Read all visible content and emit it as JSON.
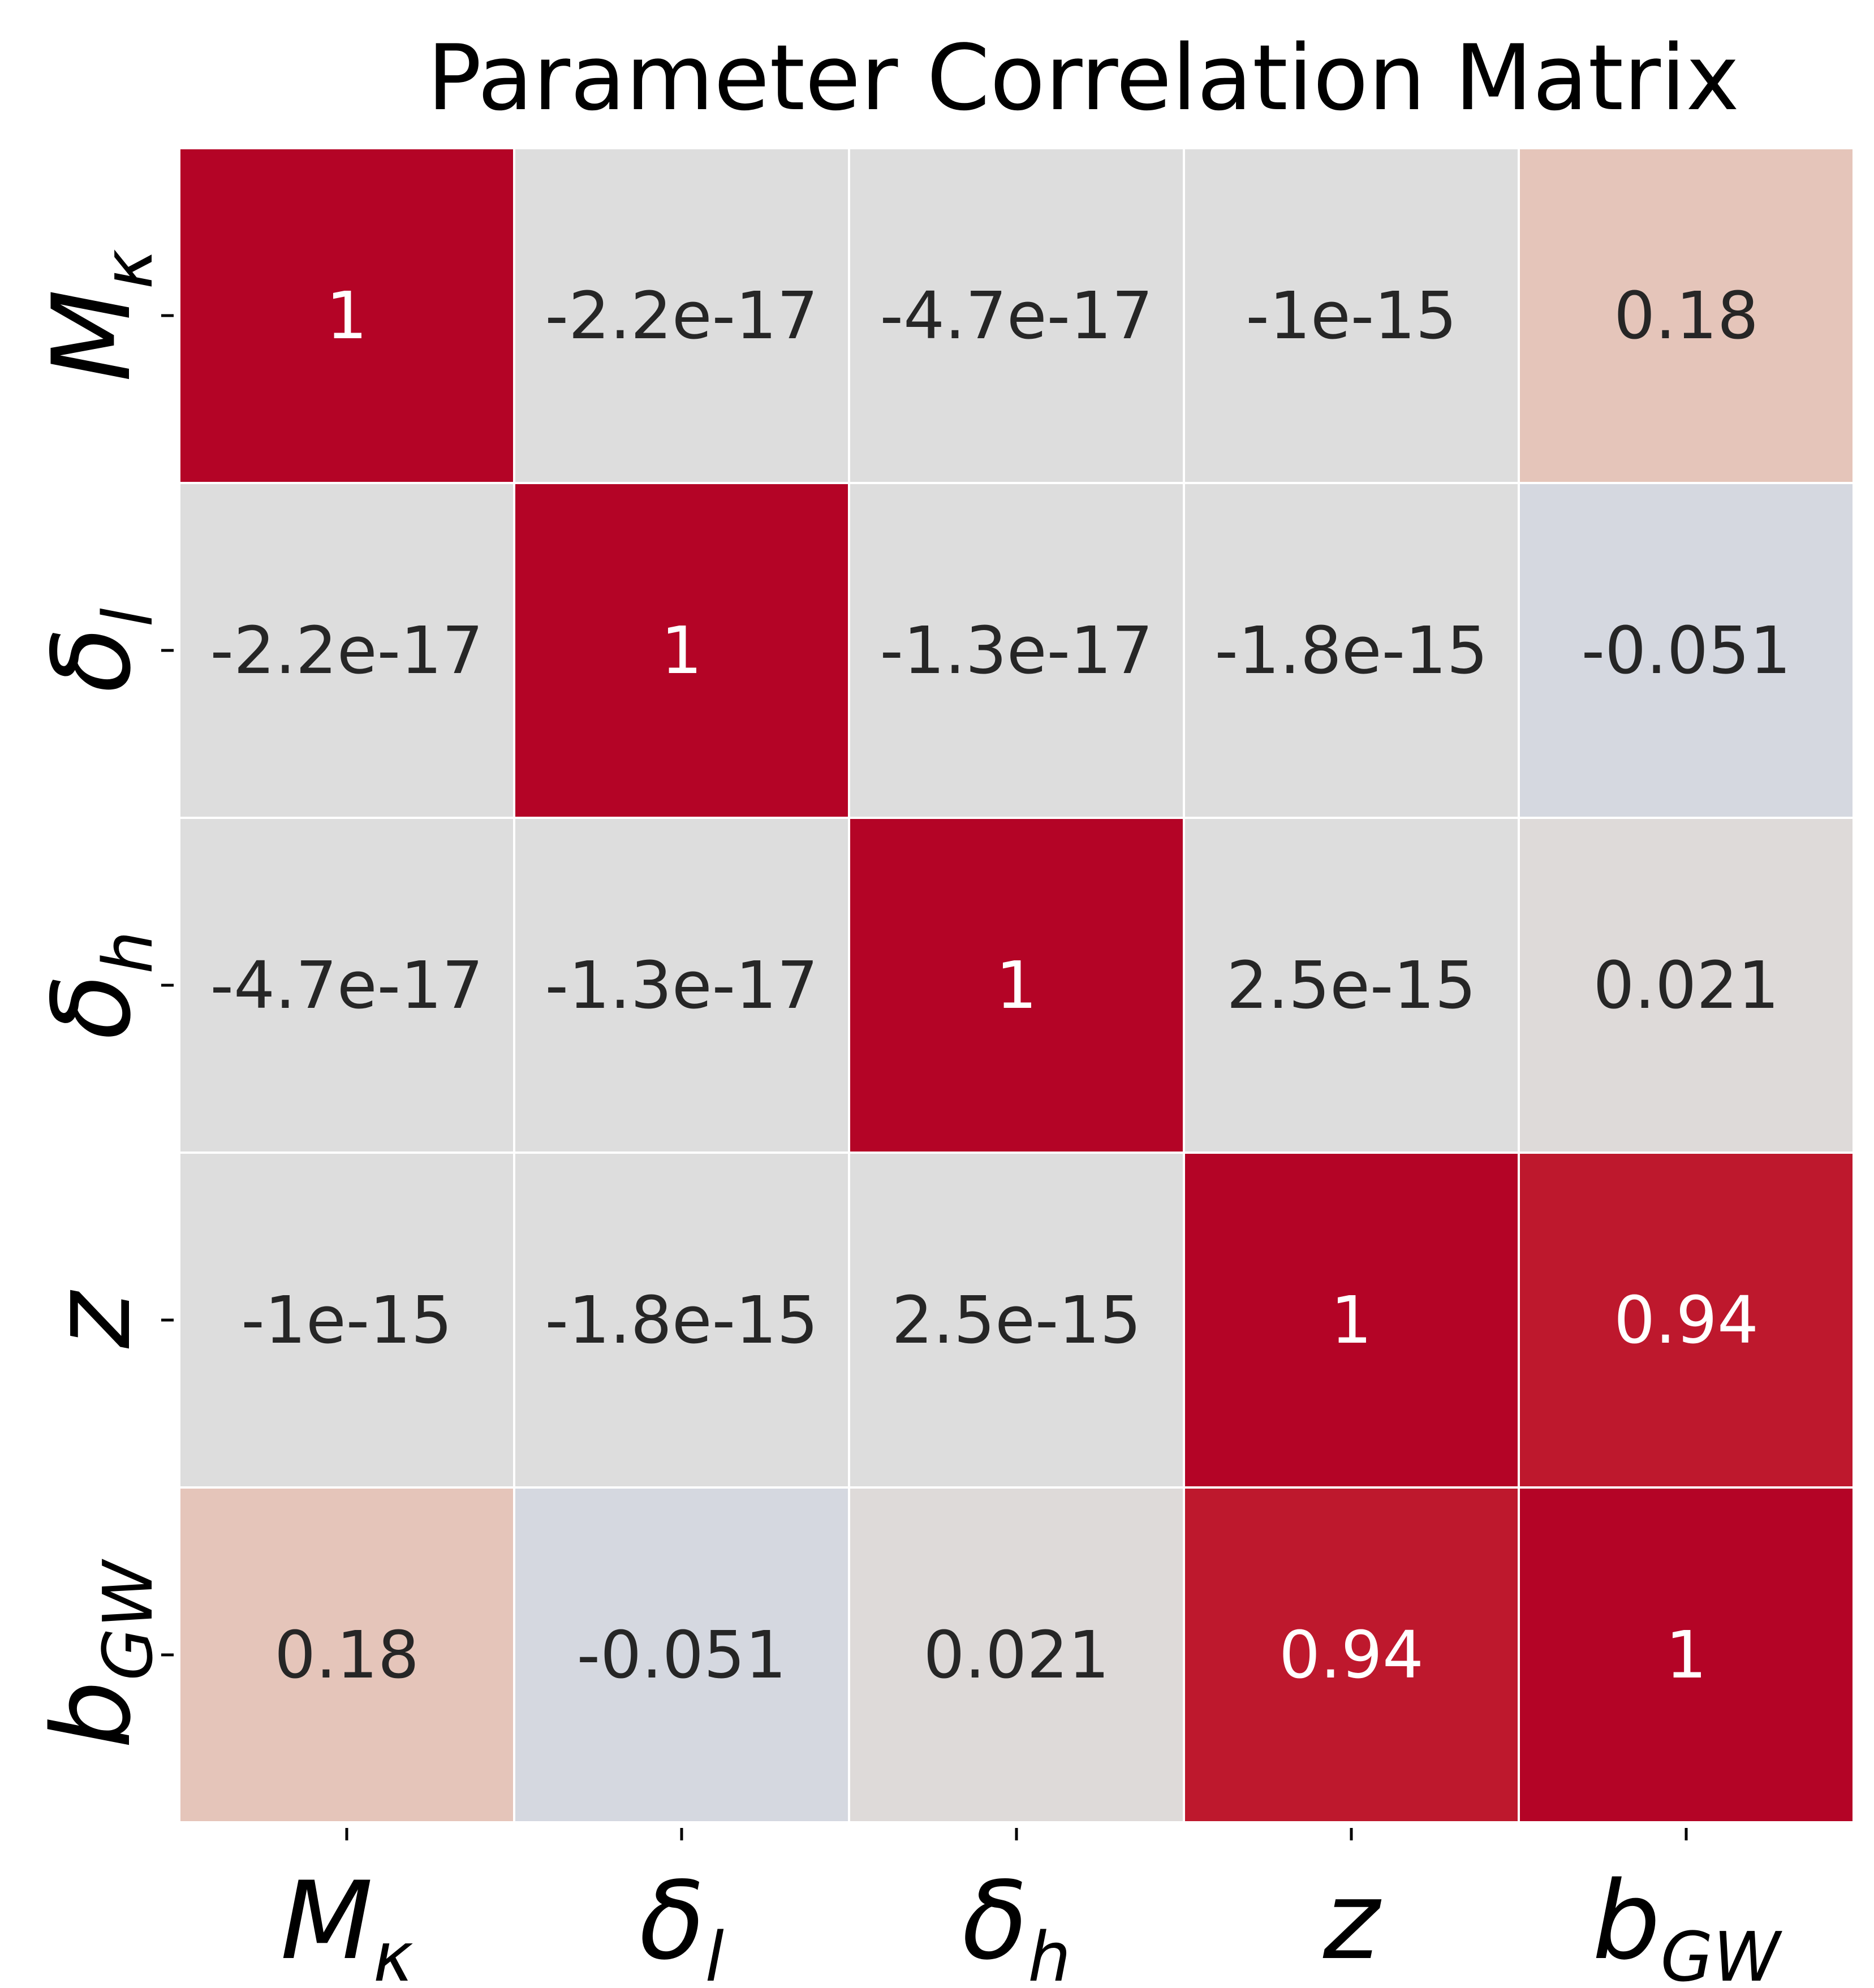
{
  "chart_data": {
    "type": "heatmap",
    "title": "Parameter Correlation Matrix",
    "xlabel": "",
    "ylabel": "",
    "rows": [
      {
        "base": "M",
        "sub": "κ"
      },
      {
        "base": "δ",
        "sub": "l"
      },
      {
        "base": "δ",
        "sub": "h"
      },
      {
        "base": "z",
        "sub": ""
      },
      {
        "base": "b",
        "sub": "GW"
      }
    ],
    "columns": [
      {
        "base": "M",
        "sub": "κ"
      },
      {
        "base": "δ",
        "sub": "l"
      },
      {
        "base": "δ",
        "sub": "h"
      },
      {
        "base": "z",
        "sub": ""
      },
      {
        "base": "b",
        "sub": "GW"
      }
    ],
    "values": [
      [
        1,
        -2.2e-17,
        -4.7e-17,
        -1e-15,
        0.18
      ],
      [
        -2.2e-17,
        1,
        -1.3e-17,
        -1.8e-15,
        -0.051
      ],
      [
        -4.7e-17,
        -1.3e-17,
        1,
        2.5e-15,
        0.021
      ],
      [
        -1e-15,
        -1.8e-15,
        2.5e-15,
        1,
        0.94
      ],
      [
        0.18,
        -0.051,
        0.021,
        0.94,
        1
      ]
    ],
    "annotations": [
      [
        "1",
        "-2.2e-17",
        "-4.7e-17",
        "-1e-15",
        "0.18"
      ],
      [
        "-2.2e-17",
        "1",
        "-1.3e-17",
        "-1.8e-15",
        "-0.051"
      ],
      [
        "-4.7e-17",
        "-1.3e-17",
        "1",
        "2.5e-15",
        "0.021"
      ],
      [
        "-1e-15",
        "-1.8e-15",
        "2.5e-15",
        "1",
        "0.94"
      ],
      [
        "0.18",
        "-0.051",
        "0.021",
        "0.94",
        "1"
      ]
    ],
    "colormap": "coolwarm",
    "vmin": -1,
    "vmax": 1,
    "colorbar": false,
    "grid": true,
    "colors": {
      "grid_line": "#ffffff",
      "text_dark": "#262626",
      "text_light": "#ffffff",
      "tick": "#000000"
    }
  }
}
